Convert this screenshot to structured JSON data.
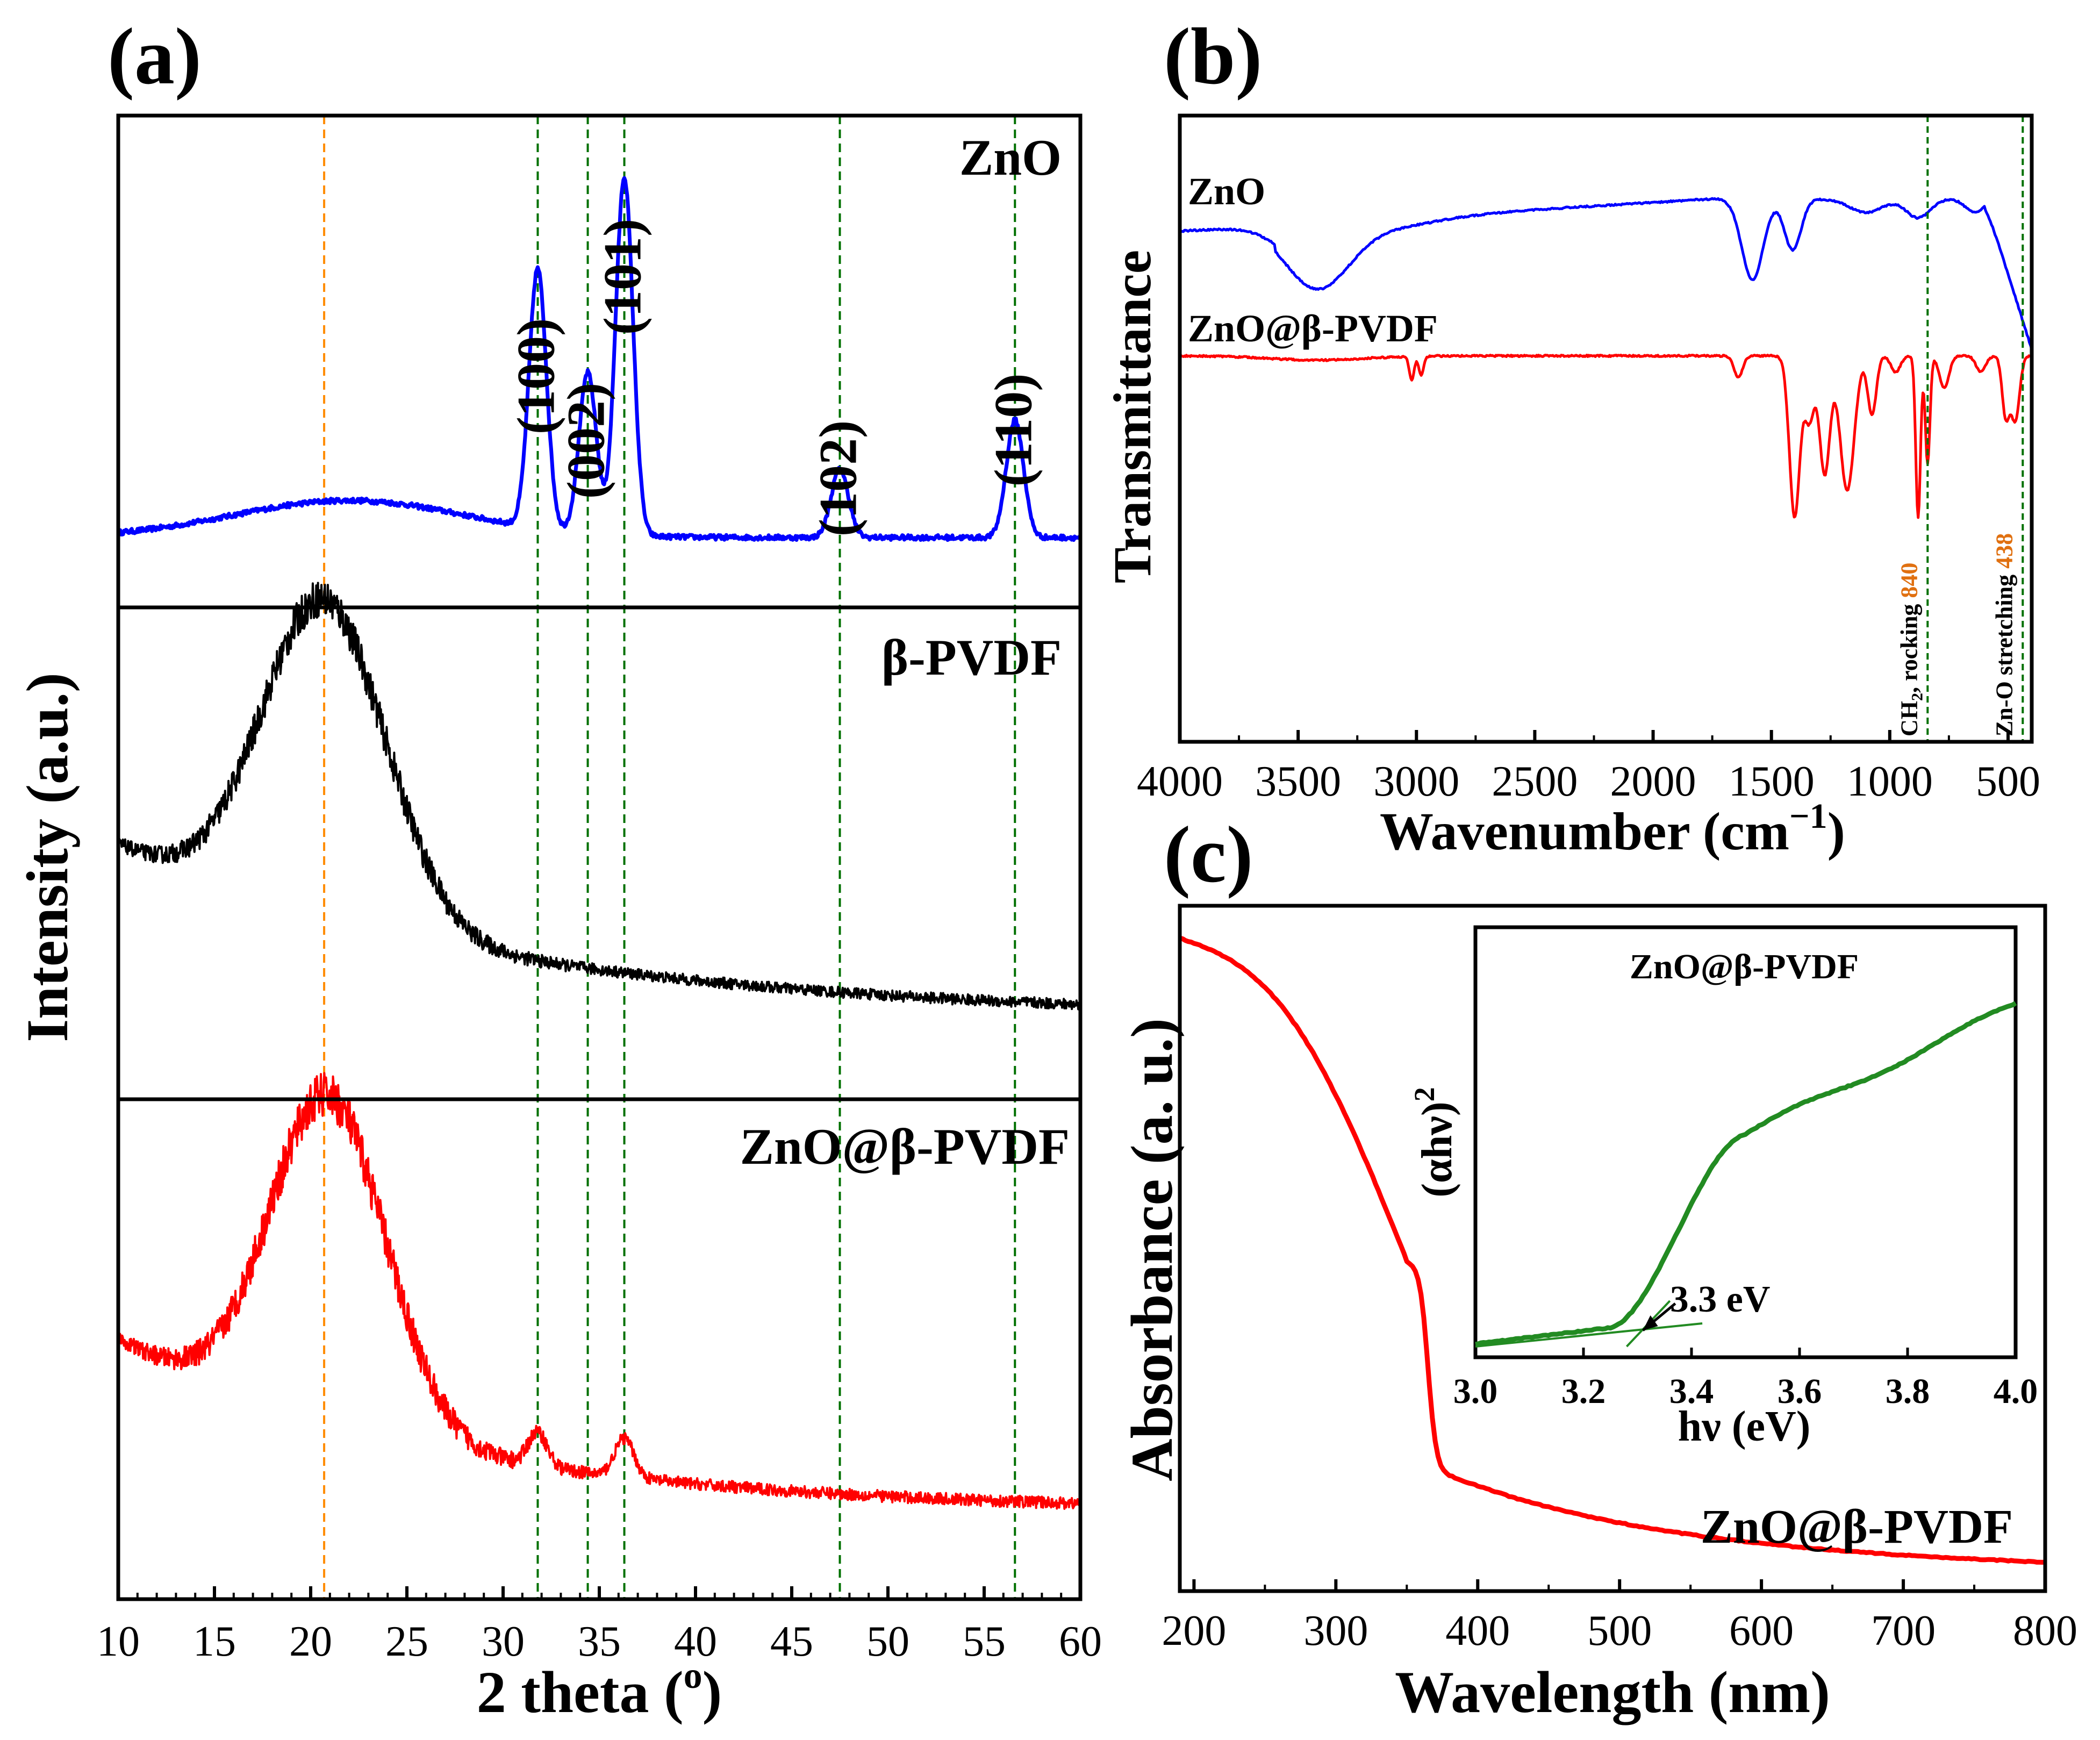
{
  "chart_data": [
    {
      "panel": "(a)",
      "type": "line",
      "xlabel": "2 theta (",
      "xlabel_sup": "o",
      "xlabel_end": ")",
      "ylabel": "Intensity (a.u.)",
      "xlim": [
        10,
        60
      ],
      "xticks": [
        10,
        15,
        20,
        25,
        30,
        35,
        40,
        45,
        50,
        55,
        60
      ],
      "reference_lines": {
        "orange": [
          20.7
        ],
        "green": [
          31.8,
          34.4,
          36.3,
          47.5,
          56.6
        ]
      },
      "colors": {
        "ZnO": "#0000ff",
        "beta_PVDF": "#000000",
        "ZnO_PVDF": "#ff0000",
        "green_ref": "#007000",
        "orange_ref": "#ff8c00"
      },
      "series": [
        {
          "name": "ZnO",
          "label": "ZnO",
          "peaks": [
            {
              "label": "(100)",
              "x": 31.8,
              "height": 0.42
            },
            {
              "label": "(002)",
              "x": 34.4,
              "height": 0.26
            },
            {
              "label": "(101)",
              "x": 36.3,
              "height": 0.58
            },
            {
              "label": "(102)",
              "x": 47.5,
              "height": 0.11
            },
            {
              "label": "(110)",
              "x": 56.6,
              "height": 0.19
            }
          ]
        },
        {
          "name": "beta-PVDF",
          "label": "β-PVDF",
          "broad_peak_x": 20.7
        },
        {
          "name": "ZnO@beta-PVDF",
          "label": "ZnO@β-PVDF",
          "broad_peak_x": 20.7
        }
      ]
    },
    {
      "panel": "(b)",
      "type": "line",
      "xlabel": "Wavenumber (cm",
      "xlabel_sup": "−1",
      "xlabel_end": ")",
      "ylabel": "Transmittance",
      "xlim": [
        4000,
        400
      ],
      "xticks": [
        4000,
        3500,
        3000,
        2500,
        2000,
        1500,
        1000,
        500
      ],
      "series": [
        {
          "name": "ZnO",
          "label": "ZnO"
        },
        {
          "name": "ZnO@beta-PVDF",
          "label": "ZnO@β-PVDF"
        }
      ],
      "annotations": [
        {
          "x": 840,
          "value": "840",
          "text_pre": "CH",
          "text_sub": "2",
          "text_post": ", rocking"
        },
        {
          "x": 438,
          "value": "438",
          "text": "Zn-O stretching"
        }
      ]
    },
    {
      "panel": "(c)",
      "type": "line",
      "xlabel": "Wavelength (nm)",
      "ylabel": "Absorbance (a. u.)",
      "xlim": [
        190,
        800
      ],
      "xticks": [
        200,
        300,
        400,
        500,
        600,
        700,
        800
      ],
      "series": [
        {
          "name": "ZnO@beta-PVDF",
          "label": "ZnO@β-PVDF",
          "absorption_edge_nm": 365
        }
      ],
      "inset": {
        "type": "line",
        "title": "ZnO@β-PVDF",
        "xlabel": "hν (eV)",
        "ylabel": "(αhν)",
        "ylabel_sup": "2",
        "xlim": [
          3.0,
          4.0
        ],
        "xticks": [
          "3.0",
          "3.2",
          "3.4",
          "3.6",
          "3.8",
          "4.0"
        ],
        "band_gap_ev": 3.3,
        "band_gap_label": "3.3 eV"
      }
    }
  ]
}
